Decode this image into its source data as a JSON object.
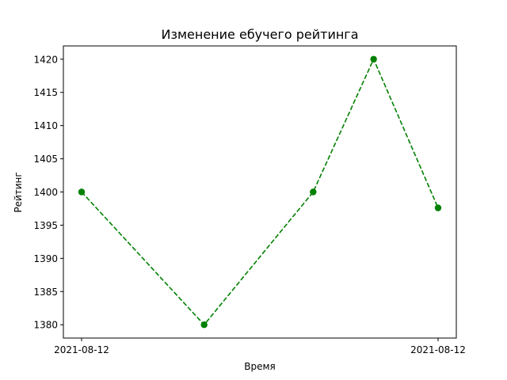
{
  "chart_data": {
    "type": "line",
    "title": "Изменение ебучего рейтинга",
    "xlabel": "Время",
    "ylabel": "Рейтинг",
    "x_tick_labels": [
      "2021-08-12",
      "2021-08-12"
    ],
    "y_ticks": [
      1380,
      1385,
      1390,
      1395,
      1400,
      1405,
      1410,
      1415,
      1420
    ],
    "ylim": [
      1378,
      1422
    ],
    "series": [
      {
        "values": [
          1400,
          1380,
          1400,
          1420,
          1397.6
        ],
        "color": "#008000",
        "line_style": "dashed",
        "marker": "circle"
      }
    ],
    "grid": false,
    "legend": false
  }
}
